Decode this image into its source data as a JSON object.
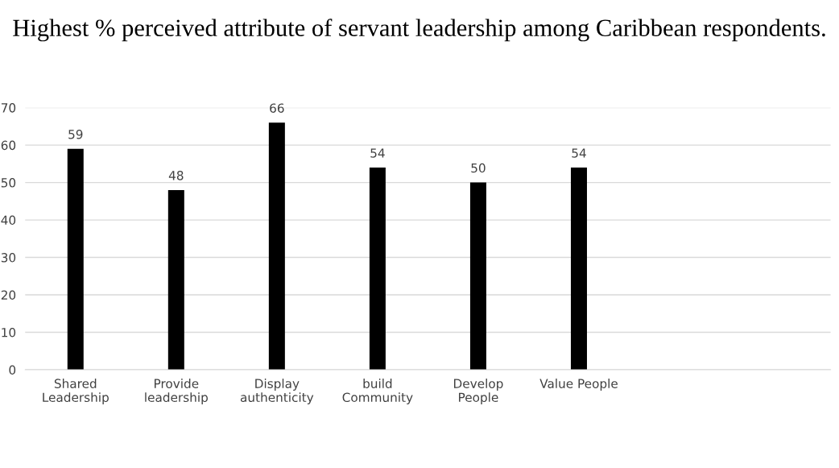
{
  "chart_data": {
    "type": "bar",
    "title": "Highest % perceived attribute of servant leadership among Caribbean respondents.",
    "categories": [
      "Shared Leadership",
      "Provide leadership",
      "Display authenticity",
      "build Community",
      "Develop People",
      "Value People",
      null,
      null
    ],
    "values": [
      59,
      48,
      66,
      54,
      50,
      54,
      null,
      null
    ],
    "color": "#000000",
    "ylim": [
      0,
      70
    ],
    "yticks": [
      0,
      10,
      20,
      30,
      40,
      50,
      60,
      70
    ],
    "grid": "y",
    "data_labels": true
  }
}
